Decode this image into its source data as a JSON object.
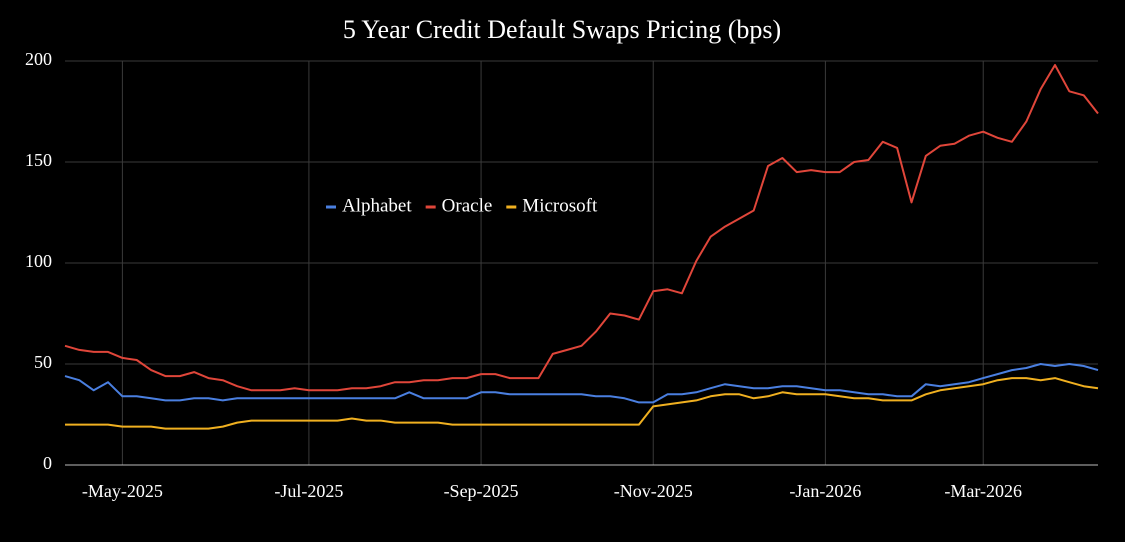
{
  "chart_data": {
    "type": "line",
    "title": "5 Year Credit Default Swaps Pricing (bps)",
    "categories": [
      null,
      null,
      null,
      null,
      "-May-2025",
      null,
      null,
      null,
      null,
      null,
      null,
      null,
      null,
      null,
      null,
      null,
      null,
      "-Jul-2025",
      null,
      null,
      null,
      null,
      null,
      null,
      null,
      null,
      null,
      null,
      null,
      "-Sep-2025",
      null,
      null,
      null,
      null,
      null,
      null,
      null,
      null,
      null,
      null,
      null,
      "-Nov-2025",
      null,
      null,
      null,
      null,
      null,
      null,
      null,
      null,
      null,
      null,
      null,
      "-Jan-2026",
      null,
      null,
      null,
      null,
      null,
      null,
      null,
      null,
      null,
      null,
      "-Mar-2026",
      null,
      null,
      null,
      null,
      null,
      null,
      null,
      null
    ],
    "series": [
      {
        "name": "Alphabet",
        "color": "#4a7fe0",
        "values": [
          44,
          42,
          37,
          41,
          34,
          34,
          33,
          32,
          32,
          33,
          33,
          32,
          33,
          33,
          33,
          33,
          33,
          33,
          33,
          33,
          33,
          33,
          33,
          33,
          36,
          33,
          33,
          33,
          33,
          36,
          36,
          35,
          35,
          35,
          35,
          35,
          35,
          34,
          34,
          33,
          31,
          31,
          35,
          35,
          36,
          38,
          40,
          39,
          38,
          38,
          39,
          39,
          38,
          37,
          37,
          36,
          35,
          35,
          34,
          34,
          40,
          39,
          40,
          41,
          43,
          45,
          47,
          48,
          50,
          49,
          50,
          49,
          47
        ]
      },
      {
        "name": "Oracle",
        "color": "#e0463a",
        "values": [
          59,
          57,
          56,
          56,
          53,
          52,
          47,
          44,
          44,
          46,
          43,
          42,
          39,
          37,
          37,
          37,
          38,
          37,
          37,
          37,
          38,
          38,
          39,
          41,
          41,
          42,
          42,
          43,
          43,
          45,
          45,
          43,
          43,
          43,
          55,
          57,
          59,
          66,
          75,
          74,
          72,
          86,
          87,
          85,
          101,
          113,
          118,
          122,
          126,
          148,
          152,
          145,
          146,
          145,
          145,
          150,
          151,
          160,
          157,
          130,
          153,
          158,
          159,
          163,
          165,
          162,
          160,
          170,
          186,
          198,
          185,
          183,
          174
        ]
      },
      {
        "name": "Microsoft",
        "color": "#f0b020",
        "values": [
          20,
          20,
          20,
          20,
          19,
          19,
          19,
          18,
          18,
          18,
          18,
          19,
          21,
          22,
          22,
          22,
          22,
          22,
          22,
          22,
          23,
          22,
          22,
          21,
          21,
          21,
          21,
          20,
          20,
          20,
          20,
          20,
          20,
          20,
          20,
          20,
          20,
          20,
          20,
          20,
          20,
          29,
          30,
          31,
          32,
          34,
          35,
          35,
          33,
          34,
          36,
          35,
          35,
          35,
          34,
          33,
          33,
          32,
          32,
          32,
          35,
          37,
          38,
          39,
          40,
          42,
          43,
          43,
          42,
          43,
          41,
          39,
          38
        ]
      }
    ],
    "ylim": [
      0,
      200
    ],
    "yticks": [
      0,
      50,
      100,
      150,
      200
    ],
    "grid": true
  }
}
